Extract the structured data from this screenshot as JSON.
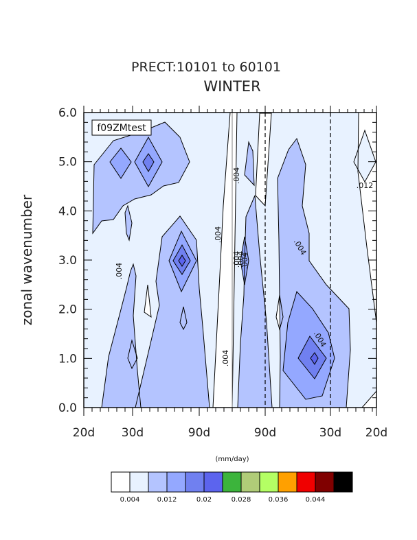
{
  "chart_data": {
    "type": "contour",
    "title": "PRECT:10101 to 60101",
    "subtitle": "WINTER",
    "ylabel": "zonal wavenumber",
    "case_label": "f09ZMtest",
    "units_label": "(mm/day)",
    "ylim": [
      0,
      6
    ],
    "y_ticks": [
      "0.0",
      "1.0",
      "2.0",
      "3.0",
      "4.0",
      "5.0",
      "6.0"
    ],
    "x_tick_labels": [
      "20d",
      "30d",
      "90d",
      "90d",
      "30d",
      "20d"
    ],
    "contour_labels": [
      ".004",
      ".004",
      ".004",
      ".004",
      ".004",
      ".004",
      ".004",
      ".004",
      ".012",
      ".004"
    ],
    "colorbar": {
      "colors": [
        "#ffffff",
        "#e8f2ff",
        "#b4c4ff",
        "#94a8ff",
        "#7080f0",
        "#5c64ee",
        "#3cb43c",
        "#b0cc78",
        "#b4ff64",
        "#ffa000",
        "#f00000",
        "#800000",
        "#000000"
      ],
      "labels": [
        "0.004",
        "0.012",
        "0.02",
        "0.028",
        "0.036",
        "0.044"
      ]
    }
  }
}
